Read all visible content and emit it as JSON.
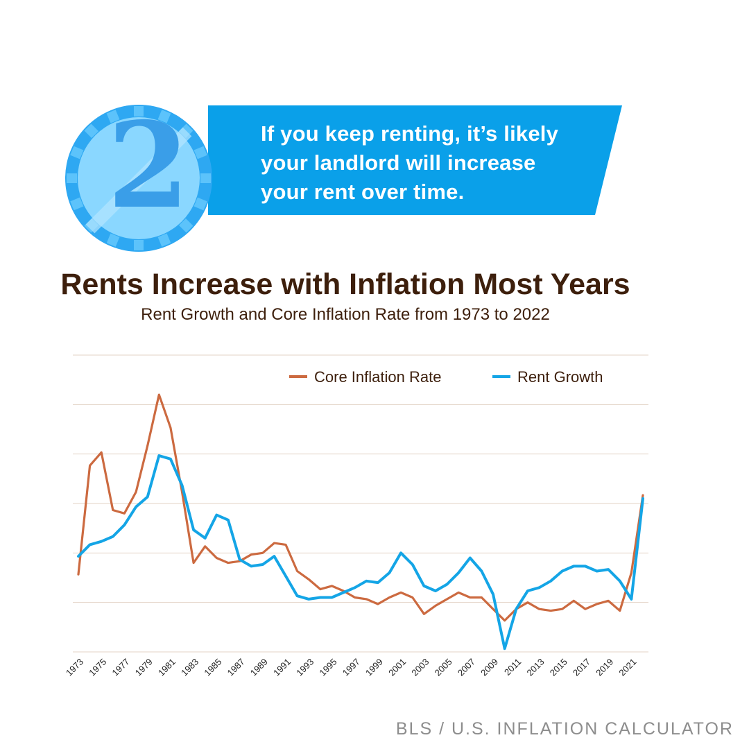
{
  "banner": {
    "step_number": "2",
    "message_lines": [
      "If you keep renting, it’s likely",
      "your landlord will increase",
      "your rent over time."
    ],
    "colors": {
      "ribbon": "#0aa0e9",
      "coin_light": "#8ad7ff",
      "coin_ring": "#2ea8f2",
      "digit": "#3a9ee8"
    }
  },
  "chart_data": {
    "type": "line",
    "title": "Rents Increase with Inflation Most Years",
    "subtitle": "Rent Growth and Core Inflation Rate from 1973 to 2022",
    "xlabel": "",
    "ylabel": "",
    "y_tick_labels_shown": false,
    "grid": "horizontal",
    "legend_position": "top-right",
    "x": [
      1973,
      1974,
      1975,
      1976,
      1977,
      1978,
      1979,
      1980,
      1981,
      1982,
      1983,
      1984,
      1985,
      1986,
      1987,
      1988,
      1989,
      1990,
      1991,
      1992,
      1993,
      1994,
      1995,
      1996,
      1997,
      1998,
      1999,
      2000,
      2001,
      2002,
      2003,
      2004,
      2005,
      2006,
      2007,
      2008,
      2009,
      2010,
      2011,
      2012,
      2013,
      2014,
      2015,
      2016,
      2017,
      2018,
      2019,
      2020,
      2021,
      2022
    ],
    "x_tick_labels": [
      "1973",
      "1975",
      "1977",
      "1979",
      "1981",
      "1983",
      "1985",
      "1987",
      "1989",
      "1991",
      "1993",
      "1995",
      "1997",
      "1999",
      "2001",
      "2003",
      "2005",
      "2007",
      "2009",
      "2011",
      "2013",
      "2015",
      "2017",
      "2019",
      "2021"
    ],
    "series": [
      {
        "name": "Core Inflation Rate",
        "color": "#cc6a40",
        "values": [
          4.7,
          11.3,
          12.1,
          8.6,
          8.4,
          9.7,
          12.5,
          15.6,
          13.6,
          9.7,
          5.4,
          6.4,
          5.7,
          5.4,
          5.5,
          5.9,
          6.0,
          6.6,
          6.5,
          4.9,
          4.4,
          3.8,
          4.0,
          3.7,
          3.3,
          3.2,
          2.9,
          3.3,
          3.6,
          3.3,
          2.3,
          2.8,
          3.2,
          3.6,
          3.3,
          3.3,
          2.6,
          1.9,
          2.6,
          3.0,
          2.6,
          2.5,
          2.6,
          3.1,
          2.6,
          2.9,
          3.1,
          2.5,
          4.8,
          9.5
        ]
      },
      {
        "name": "Rent Growth",
        "color": "#14a5e6",
        "values": [
          5.8,
          6.5,
          6.7,
          7.0,
          7.7,
          8.8,
          9.4,
          11.9,
          11.7,
          10.1,
          7.4,
          6.9,
          8.3,
          8.0,
          5.6,
          5.2,
          5.3,
          5.8,
          4.6,
          3.4,
          3.2,
          3.3,
          3.3,
          3.6,
          3.9,
          4.3,
          4.2,
          4.8,
          6.0,
          5.3,
          4.0,
          3.7,
          4.1,
          4.8,
          5.7,
          4.9,
          3.5,
          0.2,
          2.6,
          3.7,
          3.9,
          4.3,
          4.9,
          5.2,
          5.2,
          4.9,
          5.0,
          4.3,
          3.2,
          9.3
        ]
      }
    ],
    "ylim": [
      0,
      18
    ]
  },
  "source": "BLS / U.S. INFLATION CALCULATOR"
}
